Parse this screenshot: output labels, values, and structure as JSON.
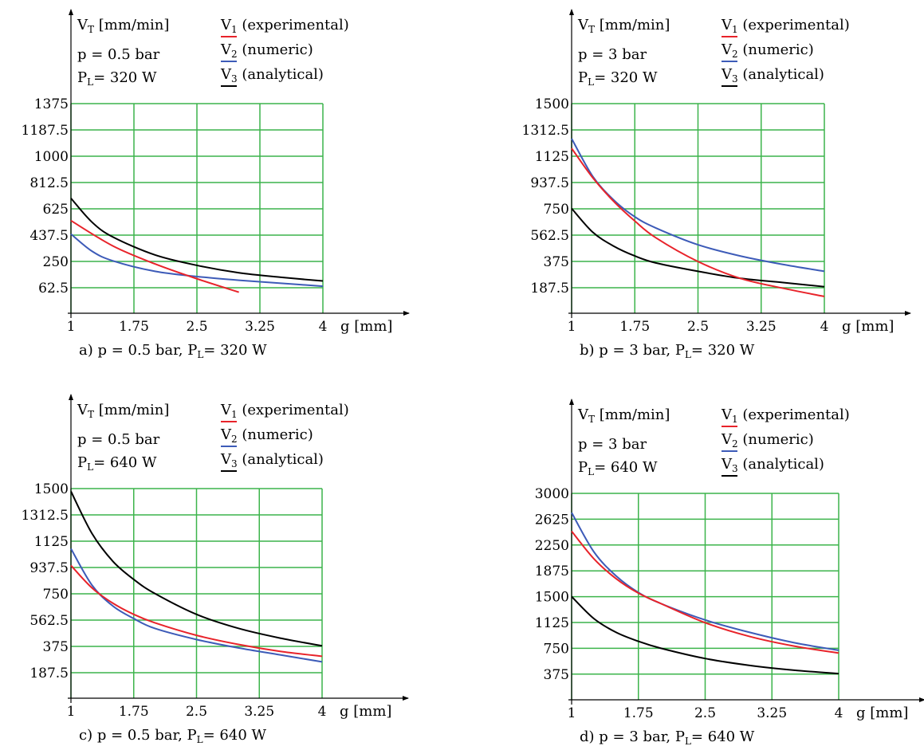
{
  "colors": {
    "background": "#ffffff",
    "grid": "#3cb44b",
    "experimental": "#e8232a",
    "numeric": "#3d5bb8",
    "analytical": "#000000"
  },
  "chart_data": [
    {
      "id": "a",
      "type": "line",
      "caption": {
        "prefix": "a) p = 0.5 bar, P",
        "sub": "L",
        "suffix": "= 320 W"
      },
      "ylabel": {
        "main": "V",
        "sub": "T",
        "unit": "[mm/min]"
      },
      "xlabel": "g [mm]",
      "info": [
        {
          "main": "p = 0.5 bar"
        },
        {
          "main": "P",
          "sub": "L",
          "tail": "= 320 W"
        }
      ],
      "legend": [
        {
          "main": "V",
          "sub": "1",
          "text": "(experimental)",
          "color_key": "experimental"
        },
        {
          "main": "V",
          "sub": "2",
          "text": "(numeric)",
          "color_key": "numeric"
        },
        {
          "main": "V",
          "sub": "3",
          "text": "(analytical)",
          "color_key": "analytical"
        }
      ],
      "xlim": [
        1,
        4
      ],
      "ylim": [
        -31.25,
        1375
      ],
      "x_ticks": [
        "1",
        "1.75",
        "2.5",
        "3.25",
        "4"
      ],
      "y_ticks": [
        "1375",
        "1187.5",
        "1000",
        "812.5",
        "625",
        "437.5",
        "250",
        "62.5"
      ],
      "grid": true,
      "series": [
        {
          "name": "V1 (experimental)",
          "color_key": "experimental",
          "x": [
            1,
            1.5,
            2,
            2.5,
            3
          ],
          "y": [
            590,
            420,
            300,
            200,
            110
          ]
        },
        {
          "name": "V2 (numeric)",
          "color_key": "numeric",
          "x": [
            1,
            1.25,
            1.5,
            2,
            2.5,
            3,
            3.5,
            4
          ],
          "y": [
            500,
            385,
            320,
            250,
            215,
            190,
            170,
            150
          ]
        },
        {
          "name": "V3 (analytical)",
          "color_key": "analytical",
          "x": [
            1,
            1.25,
            1.5,
            2,
            2.5,
            3,
            3.5,
            4
          ],
          "y": [
            740,
            580,
            480,
            360,
            290,
            240,
            210,
            185
          ]
        }
      ]
    },
    {
      "id": "b",
      "type": "line",
      "caption": {
        "prefix": "b) p = 3 bar, P",
        "sub": "L",
        "suffix": "= 320 W"
      },
      "ylabel": {
        "main": "V",
        "sub": "T",
        "unit": "[mm/min]"
      },
      "xlabel": "g [mm]",
      "info": [
        {
          "main": "p = 3 bar"
        },
        {
          "main": "P",
          "sub": "L",
          "tail": "= 320 W"
        }
      ],
      "legend": [
        {
          "main": "V",
          "sub": "1",
          "text": "(experimental)",
          "color_key": "experimental"
        },
        {
          "main": "V",
          "sub": "2",
          "text": "(numeric)",
          "color_key": "numeric"
        },
        {
          "main": "V",
          "sub": "3",
          "text": "(analytical)",
          "color_key": "analytical"
        }
      ],
      "xlim": [
        1,
        4
      ],
      "ylim": [
        0,
        1500
      ],
      "x_ticks": [
        "1",
        "1.75",
        "2.5",
        "3.25",
        "4"
      ],
      "y_ticks": [
        "1500",
        "1312.5",
        "1125",
        "937.5",
        "750",
        "562.5",
        "375",
        "187.5"
      ],
      "grid": true,
      "series": [
        {
          "name": "V1 (experimental)",
          "color_key": "experimental",
          "x": [
            1,
            1.25,
            1.5,
            1.75,
            2,
            2.5,
            3,
            3.5,
            4
          ],
          "y": [
            1180,
            970,
            800,
            660,
            540,
            370,
            250,
            180,
            120
          ]
        },
        {
          "name": "V2 (numeric)",
          "color_key": "numeric",
          "x": [
            1,
            1.25,
            1.5,
            1.75,
            2,
            2.5,
            3,
            3.5,
            4
          ],
          "y": [
            1250,
            980,
            810,
            690,
            610,
            490,
            410,
            350,
            300
          ]
        },
        {
          "name": "V3 (analytical)",
          "color_key": "analytical",
          "x": [
            1,
            1.25,
            1.5,
            1.75,
            2,
            2.5,
            3,
            3.5,
            4
          ],
          "y": [
            750,
            580,
            480,
            410,
            360,
            300,
            250,
            220,
            190
          ]
        }
      ]
    },
    {
      "id": "c",
      "type": "line",
      "caption": {
        "prefix": "c) p = 0.5 bar, P",
        "sub": "L",
        "suffix": "= 640 W"
      },
      "ylabel": {
        "main": "V",
        "sub": "T",
        "unit": "[mm/min]"
      },
      "xlabel": "g [mm]",
      "info": [
        {
          "main": "p = 0.5 bar"
        },
        {
          "main": "P",
          "sub": "L",
          "tail": "= 640 W"
        }
      ],
      "legend": [
        {
          "main": "V",
          "sub": "1",
          "text": "(experimental)",
          "color_key": "experimental"
        },
        {
          "main": "V",
          "sub": "2",
          "text": "(numeric)",
          "color_key": "numeric"
        },
        {
          "main": "V",
          "sub": "3",
          "text": "(analytical)",
          "color_key": "analytical"
        }
      ],
      "xlim": [
        1,
        4
      ],
      "ylim": [
        0,
        1500
      ],
      "x_ticks": [
        "1",
        "1.75",
        "2.5",
        "3.25",
        "4"
      ],
      "y_ticks": [
        "1500",
        "1312.5",
        "1125",
        "937.5",
        "750",
        "562.5",
        "375",
        "187.5"
      ],
      "grid": true,
      "series": [
        {
          "name": "V1 (experimental)",
          "color_key": "experimental",
          "x": [
            1,
            1.25,
            1.5,
            1.75,
            2,
            2.5,
            3,
            3.5,
            4
          ],
          "y": [
            950,
            790,
            680,
            600,
            540,
            450,
            385,
            335,
            300
          ]
        },
        {
          "name": "V2 (numeric)",
          "color_key": "numeric",
          "x": [
            1,
            1.25,
            1.5,
            1.75,
            2,
            2.5,
            3,
            3.5,
            4
          ],
          "y": [
            1070,
            810,
            660,
            570,
            500,
            420,
            360,
            310,
            260
          ]
        },
        {
          "name": "V3 (analytical)",
          "color_key": "analytical",
          "x": [
            1,
            1.25,
            1.5,
            1.75,
            2,
            2.5,
            3,
            3.5,
            4
          ],
          "y": [
            1480,
            1180,
            980,
            850,
            750,
            600,
            500,
            430,
            375
          ]
        }
      ]
    },
    {
      "id": "d",
      "type": "line",
      "caption": {
        "prefix": "d) p = 3 bar, P",
        "sub": "L",
        "suffix": "= 640 W"
      },
      "ylabel": {
        "main": "V",
        "sub": "T",
        "unit": "[mm/min]"
      },
      "xlabel": "g [mm]",
      "info": [
        {
          "main": "p = 3 bar"
        },
        {
          "main": "P",
          "sub": "L",
          "tail": "= 640 W"
        }
      ],
      "legend": [
        {
          "main": "V",
          "sub": "1",
          "text": "(experimental)",
          "color_key": "experimental"
        },
        {
          "main": "V",
          "sub": "2",
          "text": "(numeric)",
          "color_key": "numeric"
        },
        {
          "main": "V",
          "sub": "3",
          "text": "(analytical)",
          "color_key": "analytical"
        }
      ],
      "xlim": [
        1,
        4
      ],
      "ylim": [
        0,
        3000
      ],
      "x_ticks": [
        "1",
        "1.75",
        "2.5",
        "3.25",
        "4"
      ],
      "y_ticks": [
        "3000",
        "2625",
        "2250",
        "1875",
        "1500",
        "1125",
        "750",
        "375"
      ],
      "grid": true,
      "series": [
        {
          "name": "V1 (experimental)",
          "color_key": "experimental",
          "x": [
            1,
            1.25,
            1.5,
            1.75,
            2,
            2.5,
            3,
            3.5,
            4
          ],
          "y": [
            2450,
            2050,
            1760,
            1550,
            1400,
            1120,
            920,
            780,
            680
          ]
        },
        {
          "name": "V2 (numeric)",
          "color_key": "numeric",
          "x": [
            1,
            1.25,
            1.5,
            1.75,
            2,
            2.5,
            3,
            3.5,
            4
          ],
          "y": [
            2720,
            2150,
            1800,
            1560,
            1400,
            1160,
            980,
            830,
            720
          ]
        },
        {
          "name": "V3 (analytical)",
          "color_key": "analytical",
          "x": [
            1,
            1.25,
            1.5,
            1.75,
            2,
            2.5,
            3,
            3.5,
            4
          ],
          "y": [
            1500,
            1180,
            980,
            850,
            750,
            600,
            500,
            430,
            380
          ]
        }
      ]
    }
  ]
}
